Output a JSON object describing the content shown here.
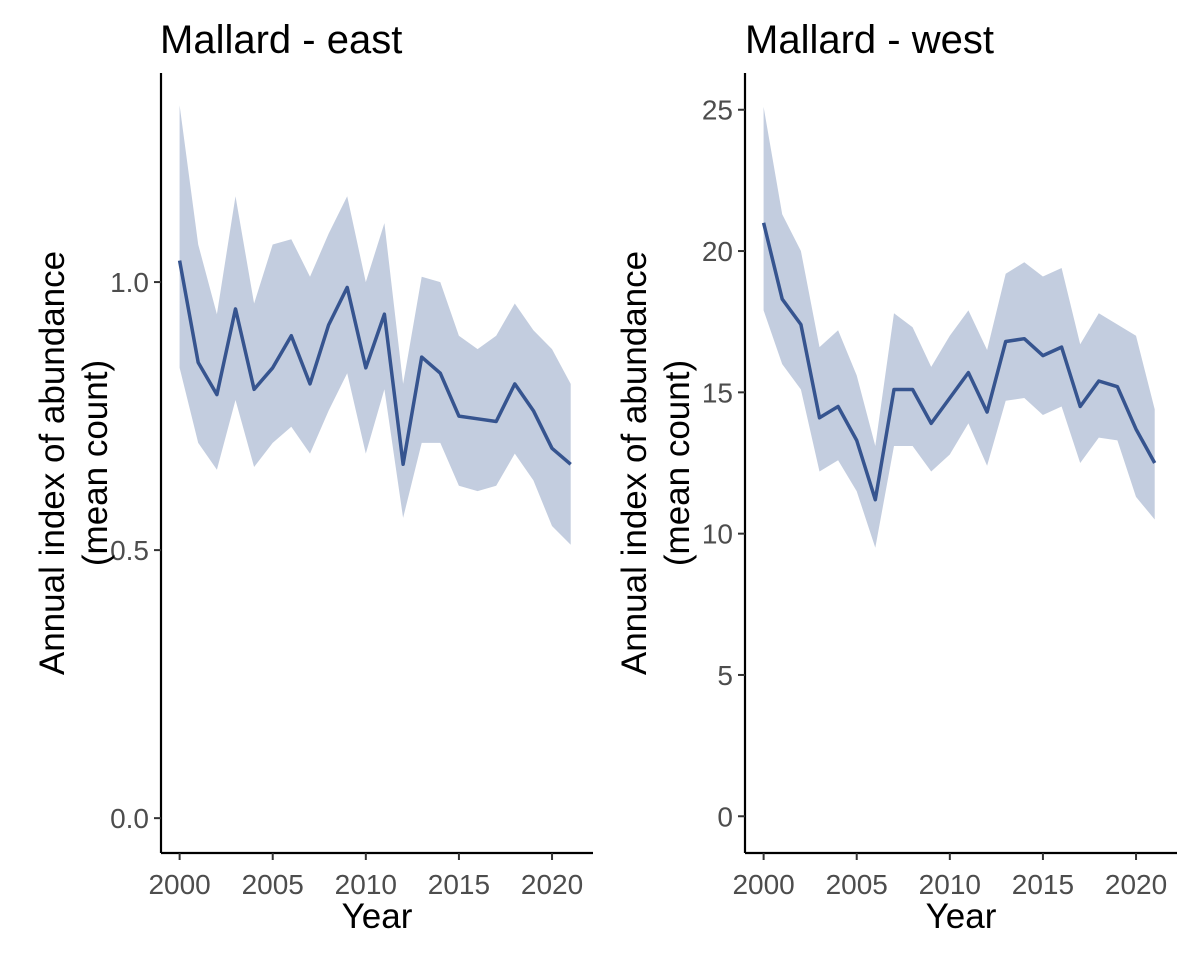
{
  "chart_data": [
    {
      "type": "line",
      "title": "Mallard - east",
      "xlabel": "Year",
      "ylabel_line1": "Annual index of abundance",
      "ylabel_line2": "(mean count)",
      "xlim": [
        1999,
        2022.2
      ],
      "ylim": [
        -0.065,
        1.39
      ],
      "xticks": [
        2000,
        2005,
        2010,
        2015,
        2020
      ],
      "xtick_labels": [
        "2000",
        "2005",
        "2010",
        "2015",
        "2020"
      ],
      "yticks": [
        0.0,
        0.5,
        1.0
      ],
      "ytick_labels": [
        "0.0",
        "0.5",
        "1.0"
      ],
      "grid": false,
      "x": [
        2000,
        2001,
        2002,
        2003,
        2004,
        2005,
        2006,
        2007,
        2008,
        2009,
        2010,
        2011,
        2012,
        2013,
        2014,
        2015,
        2016,
        2017,
        2018,
        2019,
        2020,
        2021
      ],
      "series": [
        {
          "values": [
            1.04,
            0.85,
            0.79,
            0.95,
            0.8,
            0.84,
            0.9,
            0.81,
            0.92,
            0.99,
            0.84,
            0.94,
            0.66,
            0.86,
            0.83,
            0.75,
            0.745,
            0.74,
            0.81,
            0.76,
            0.69,
            0.66
          ],
          "lower": [
            0.84,
            0.7,
            0.65,
            0.78,
            0.655,
            0.7,
            0.73,
            0.68,
            0.76,
            0.83,
            0.68,
            0.8,
            0.56,
            0.7,
            0.7,
            0.62,
            0.61,
            0.62,
            0.68,
            0.63,
            0.545,
            0.51
          ],
          "upper": [
            1.33,
            1.07,
            0.94,
            1.16,
            0.96,
            1.07,
            1.08,
            1.01,
            1.09,
            1.16,
            1.0,
            1.11,
            0.81,
            1.01,
            1.0,
            0.9,
            0.875,
            0.9,
            0.96,
            0.91,
            0.875,
            0.81
          ]
        }
      ],
      "line_color": "#36548f",
      "band_color": "#c3cddf"
    },
    {
      "type": "line",
      "title": "Mallard - west",
      "xlabel": "Year",
      "ylabel_line1": "Annual index of abundance",
      "ylabel_line2": "(mean count)",
      "xlim": [
        1999,
        2022.2
      ],
      "ylim": [
        -1.3,
        26.3
      ],
      "xticks": [
        2000,
        2005,
        2010,
        2015,
        2020
      ],
      "xtick_labels": [
        "2000",
        "2005",
        "2010",
        "2015",
        "2020"
      ],
      "yticks": [
        0,
        5,
        10,
        15,
        20,
        25
      ],
      "ytick_labels": [
        "0",
        "5",
        "10",
        "15",
        "20",
        "25"
      ],
      "grid": false,
      "x": [
        2000,
        2001,
        2002,
        2003,
        2004,
        2005,
        2006,
        2007,
        2008,
        2009,
        2010,
        2011,
        2012,
        2013,
        2014,
        2015,
        2016,
        2017,
        2018,
        2019,
        2020,
        2021
      ],
      "series": [
        {
          "values": [
            21.0,
            18.3,
            17.4,
            14.1,
            14.5,
            13.3,
            11.2,
            15.1,
            15.1,
            13.9,
            14.8,
            15.7,
            14.3,
            16.8,
            16.9,
            16.3,
            16.6,
            14.5,
            15.4,
            15.2,
            13.7,
            12.5
          ],
          "lower": [
            17.9,
            16.0,
            15.1,
            12.2,
            12.6,
            11.5,
            9.5,
            13.1,
            13.1,
            12.2,
            12.8,
            13.9,
            12.4,
            14.7,
            14.8,
            14.2,
            14.5,
            12.5,
            13.4,
            13.3,
            11.3,
            10.5
          ],
          "upper": [
            25.1,
            21.3,
            20.0,
            16.6,
            17.2,
            15.6,
            13.1,
            17.8,
            17.3,
            15.9,
            17.0,
            17.9,
            16.5,
            19.2,
            19.6,
            19.1,
            19.4,
            16.7,
            17.8,
            17.4,
            17.0,
            14.4
          ]
        }
      ],
      "line_color": "#36548f",
      "band_color": "#c3cddf"
    }
  ]
}
